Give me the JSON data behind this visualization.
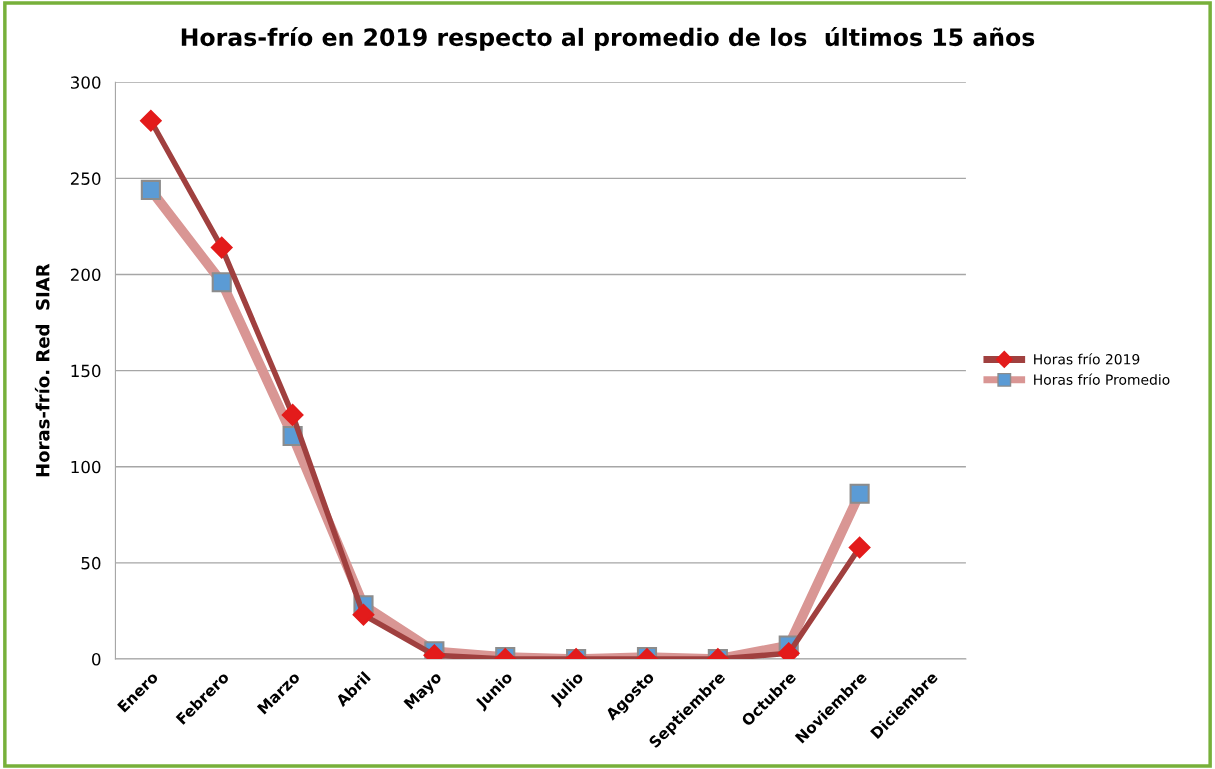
{
  "chart_data": {
    "type": "line",
    "title": "Horas-frío en 2019 respecto al promedio de los  últimos 15 años",
    "ylabel": "Horas-frío. Red  SIAR",
    "categories": [
      "Enero",
      "Febrero",
      "Marzo",
      "Abril",
      "Mayo",
      "Junio",
      "Julio",
      "Agosto",
      "Septiembre",
      "Octubre",
      "Noviembre",
      "Diciembre"
    ],
    "series": [
      {
        "name": "Horas frío 2019",
        "color": "#a0403f",
        "colors": [
          "#e31b1b",
          "#e31b1b",
          "#e31b1b",
          "#e31b1b",
          "#e31b1b",
          "#e31b1b",
          "#e31b1b",
          "#e31b1b",
          "#e31b1b",
          "#e31b1b",
          "#e31b1b",
          "#e31b1b"
        ],
        "marker": "diamond",
        "values": [
          280,
          214,
          127,
          23,
          2,
          0,
          0,
          0,
          0,
          3,
          58,
          null
        ]
      },
      {
        "name": "Horas frío Promedio",
        "color": "#d99694",
        "colors": [
          "#5b9bd5",
          "#5b9bd5",
          "#5b9bd5",
          "#5b9bd5",
          "#5b9bd5",
          "#5b9bd5",
          "#5b9bd5",
          "#5b9bd5",
          "#5b9bd5",
          "#5b9bd5",
          "#5b9bd5",
          "#5b9bd5"
        ],
        "marker": "square",
        "values": [
          244,
          196,
          116,
          28,
          4,
          1,
          0,
          1,
          0,
          7,
          86,
          null
        ]
      }
    ],
    "ylim": [
      0,
      300
    ],
    "yticks": [
      0,
      50,
      100,
      150,
      200,
      250,
      300
    ],
    "grid": "y",
    "legend": "right"
  }
}
